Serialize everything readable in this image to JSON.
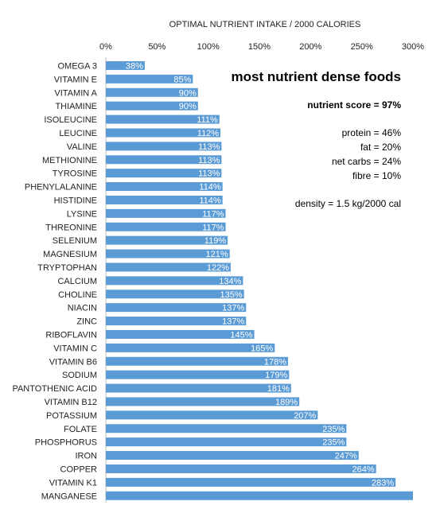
{
  "chart_data": {
    "type": "bar",
    "orientation": "horizontal",
    "title": "OPTIMAL NUTRIENT INTAKE / 2000 CALORIES",
    "xlim": [
      0,
      300
    ],
    "x_ticks": [
      "0%",
      "50%",
      "100%",
      "150%",
      "200%",
      "250%",
      "300%"
    ],
    "x_tick_values": [
      0,
      50,
      100,
      150,
      200,
      250,
      300
    ],
    "bar_color": "#5b9bd5",
    "categories": [
      "OMEGA 3",
      "VITAMIN E",
      "VITAMIN A",
      "THIAMINE",
      "ISOLEUCINE",
      "LEUCINE",
      "VALINE",
      "METHIONINE",
      "TYROSINE",
      "PHENYLALANINE",
      "HISTIDINE",
      "LYSINE",
      "THREONINE",
      "SELENIUM",
      "MAGNESIUM",
      "TRYPTOPHAN",
      "CALCIUM",
      "CHOLINE",
      "NIACIN",
      "ZINC",
      "RIBOFLAVIN",
      "VITAMIN C",
      "VITAMIN B6",
      "SODIUM",
      "PANTOTHENIC ACID",
      "VITAMIN B12",
      "POTASSIUM",
      "FOLATE",
      "PHOSPHORUS",
      "IRON",
      "COPPER",
      "VITAMIN K1",
      "MANGANESE"
    ],
    "values": [
      38,
      85,
      90,
      90,
      111,
      112,
      113,
      113,
      113,
      114,
      114,
      117,
      117,
      119,
      121,
      122,
      134,
      135,
      137,
      137,
      145,
      165,
      178,
      179,
      181,
      189,
      207,
      235,
      235,
      247,
      264,
      283,
      300
    ],
    "data_labels": [
      "38%",
      "85%",
      "90%",
      "90%",
      "111%",
      "112%",
      "113%",
      "113%",
      "113%",
      "114%",
      "114%",
      "117%",
      "117%",
      "119%",
      "121%",
      "122%",
      "134%",
      "135%",
      "137%",
      "137%",
      "145%",
      "165%",
      "178%",
      "179%",
      "181%",
      "189%",
      "207%",
      "235%",
      "235%",
      "247%",
      "264%",
      "283%",
      ""
    ],
    "annotations": {
      "heading": "most nutrient dense foods",
      "score": "nutrient score = 97%",
      "protein": "protein = 46%",
      "fat": "fat = 20%",
      "net_carbs": "net carbs = 24%",
      "fibre": "fibre = 10%",
      "density": "density = 1.5 kg/2000 cal"
    }
  }
}
